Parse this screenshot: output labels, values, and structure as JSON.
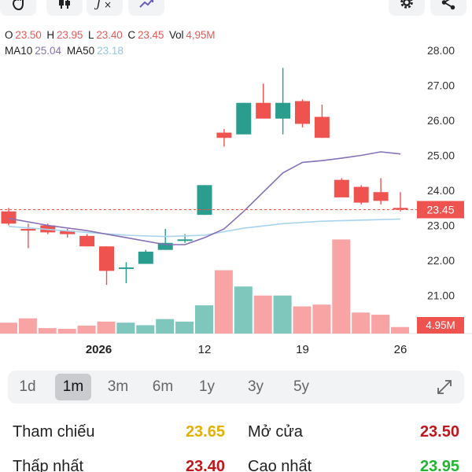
{
  "ohlc": {
    "o_label": "O",
    "o": "23.50",
    "h_label": "H",
    "h": "23.95",
    "l_label": "L",
    "l": "23.40",
    "c_label": "C",
    "c": "23.45",
    "vol_label": "Vol",
    "vol": "4,95M"
  },
  "ma": {
    "ma10_label": "MA10",
    "ma10": "25.04",
    "ma50_label": "MA50",
    "ma50": "23.18"
  },
  "toolbar": {
    "icons": [
      "hand-icon",
      "candlestick-icon",
      "function-icon",
      "trend-icon",
      "gear-icon",
      "share-icon"
    ]
  },
  "colors": {
    "up": "#2a9d8f",
    "down": "#ef5350",
    "vol_up": "#7fc6bc",
    "vol_down": "#f8a4a4",
    "ma10": "#8670b8",
    "ma50": "#a8d4ee",
    "price_line": "#ef5350"
  },
  "chart_data": {
    "type": "candlestick",
    "ylim": [
      20.2,
      28.4
    ],
    "y_ticks": [
      "28.00",
      "27.00",
      "26.00",
      "25.00",
      "24.00",
      "23.00",
      "22.00",
      "21.00"
    ],
    "x_ticks": [
      {
        "label": "2026",
        "index": 4.6
      },
      {
        "label": "12",
        "index": 10
      },
      {
        "label": "19",
        "index": 15
      },
      {
        "label": "26",
        "index": 20
      }
    ],
    "current_price": 23.45,
    "current_price_label": "23.45",
    "current_volume_label": "4.95M",
    "candles": [
      {
        "o": 23.4,
        "h": 23.5,
        "l": 23.0,
        "c": 23.05,
        "v": 0.3
      },
      {
        "o": 22.9,
        "h": 23.05,
        "l": 22.35,
        "c": 22.85,
        "v": 0.42
      },
      {
        "o": 23.0,
        "h": 23.05,
        "l": 22.75,
        "c": 22.8,
        "v": 0.15
      },
      {
        "o": 22.85,
        "h": 22.9,
        "l": 22.65,
        "c": 22.75,
        "v": 0.13
      },
      {
        "o": 22.7,
        "h": 22.75,
        "l": 22.4,
        "c": 22.4,
        "v": 0.22
      },
      {
        "o": 22.4,
        "h": 22.4,
        "l": 21.3,
        "c": 21.7,
        "v": 0.33
      },
      {
        "o": 21.8,
        "h": 21.95,
        "l": 21.35,
        "c": 21.8,
        "v": 0.3
      },
      {
        "o": 21.9,
        "h": 22.3,
        "l": 21.9,
        "c": 22.25,
        "v": 0.23
      },
      {
        "o": 22.3,
        "h": 22.9,
        "l": 22.3,
        "c": 22.5,
        "v": 0.4
      },
      {
        "o": 22.6,
        "h": 22.75,
        "l": 22.5,
        "c": 22.6,
        "v": 0.33
      },
      {
        "o": 23.3,
        "h": 24.15,
        "l": 23.3,
        "c": 24.15,
        "v": 0.78
      },
      {
        "o": 25.65,
        "h": 25.75,
        "l": 25.25,
        "c": 25.5,
        "v": 1.75
      },
      {
        "o": 25.6,
        "h": 26.5,
        "l": 25.6,
        "c": 26.5,
        "v": 1.3
      },
      {
        "o": 26.5,
        "h": 27.05,
        "l": 26.1,
        "c": 26.05,
        "v": 1.05
      },
      {
        "o": 26.05,
        "h": 27.5,
        "l": 25.6,
        "c": 26.5,
        "v": 1.05
      },
      {
        "o": 26.55,
        "h": 26.6,
        "l": 25.8,
        "c": 25.9,
        "v": 0.75
      },
      {
        "o": 26.1,
        "h": 26.45,
        "l": 25.5,
        "c": 25.5,
        "v": 0.8
      },
      {
        "o": 24.3,
        "h": 24.35,
        "l": 23.8,
        "c": 23.8,
        "v": 2.6
      },
      {
        "o": 24.1,
        "h": 24.15,
        "l": 23.6,
        "c": 23.65,
        "v": 0.58
      },
      {
        "o": 23.95,
        "h": 24.35,
        "l": 23.6,
        "c": 23.7,
        "v": 0.52
      },
      {
        "o": 23.5,
        "h": 23.95,
        "l": 23.4,
        "c": 23.45,
        "v": 0.18
      }
    ],
    "ma10": [
      [
        0,
        23.2
      ],
      [
        2,
        23.0
      ],
      [
        4,
        22.85
      ],
      [
        6,
        22.65
      ],
      [
        8,
        22.45
      ],
      [
        9,
        22.45
      ],
      [
        10,
        22.65
      ],
      [
        11,
        22.9
      ],
      [
        12,
        23.4
      ],
      [
        13,
        23.95
      ],
      [
        14,
        24.5
      ],
      [
        15,
        24.8
      ],
      [
        16,
        24.85
      ],
      [
        17,
        24.92
      ],
      [
        18,
        25.0
      ],
      [
        19,
        25.1
      ],
      [
        20,
        25.04
      ]
    ],
    "ma50": [
      [
        0,
        22.97
      ],
      [
        4,
        22.8
      ],
      [
        6,
        22.72
      ],
      [
        8,
        22.68
      ],
      [
        10,
        22.72
      ],
      [
        12,
        22.92
      ],
      [
        14,
        23.05
      ],
      [
        16,
        23.12
      ],
      [
        18,
        23.15
      ],
      [
        20,
        23.18
      ]
    ]
  },
  "periods": {
    "items": [
      "1d",
      "1m",
      "3m",
      "6m",
      "1y",
      "3y",
      "5y"
    ],
    "active": "1m"
  },
  "stats": {
    "ref_label": "Tham chiếu",
    "ref_value": "23.65",
    "open_label": "Mở cửa",
    "open_value": "23.50",
    "low_label": "Thấp nhất",
    "low_value": "23.40",
    "high_label": "Cao nhất",
    "high_value": "23.95"
  }
}
